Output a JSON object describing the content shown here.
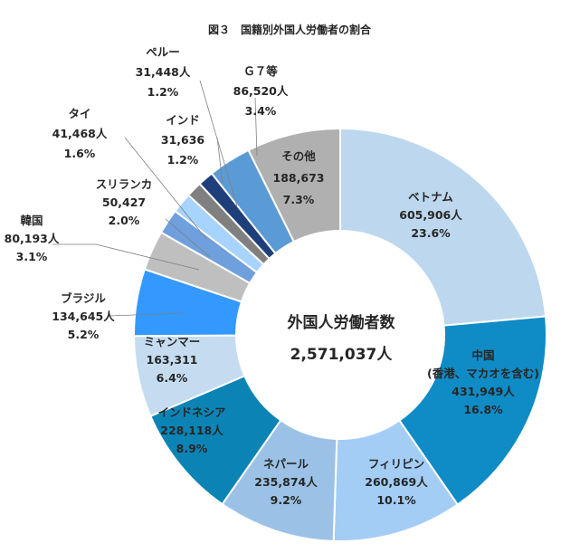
{
  "chart_data": {
    "type": "donut",
    "title": "図３　国籍別外国人労働者の割合",
    "center_label": "外国人労働者数",
    "center_value": "2,571,037人",
    "slices": [
      {
        "name": "ベトナム",
        "value": 605906,
        "value_text": "605,906人",
        "percent": "23.6%",
        "color": "#bdd7ee"
      },
      {
        "name": "中国",
        "name2": "(香港、マカオを含む)",
        "value": 431949,
        "value_text": "431,949人",
        "percent": "16.8%",
        "color": "#0f8bc5"
      },
      {
        "name": "フィリピン",
        "value": 260869,
        "value_text": "260,869人",
        "percent": "10.1%",
        "color": "#a3cdf5"
      },
      {
        "name": "ネパール",
        "value": 235874,
        "value_text": "235,874人",
        "percent": "9.2%",
        "color": "#9bc2e6"
      },
      {
        "name": "インドネシア",
        "value": 228118,
        "value_text": "228,118人",
        "percent": "8.9%",
        "color": "#0b84b5"
      },
      {
        "name": "ミャンマー",
        "value": 163311,
        "value_text": "163,311",
        "percent": "6.4%",
        "color": "#c5dcf0"
      },
      {
        "name": "ブラジル",
        "value": 134645,
        "value_text": "134,645人",
        "percent": "5.2%",
        "color": "#3399ff"
      },
      {
        "name": "韓国",
        "value": 80193,
        "value_text": "80,193人",
        "percent": "3.1%",
        "color": "#bfbfbf"
      },
      {
        "name": "スリランカ",
        "value": 50427,
        "value_text": "50,427",
        "percent": "2.0%",
        "color": "#6f9fdc"
      },
      {
        "name": "タイ",
        "value": 41468,
        "value_text": "41,468人",
        "percent": "1.6%",
        "color": "#a6d4ff"
      },
      {
        "name": "インド",
        "value": 31636,
        "value_text": "31,636",
        "percent": "1.2%",
        "color": "#808080"
      },
      {
        "name": "ペルー",
        "value": 31448,
        "value_text": "31,448人",
        "percent": "1.2%",
        "color": "#1f3f7a"
      },
      {
        "name": "Ｇ７等",
        "value": 86520,
        "value_text": "86,520人",
        "percent": "3.4%",
        "color": "#5b9bd5"
      },
      {
        "name": "その他",
        "value": 188673,
        "value_text": "188,673",
        "percent": "7.3%",
        "color": "#b0b0b0"
      }
    ]
  }
}
